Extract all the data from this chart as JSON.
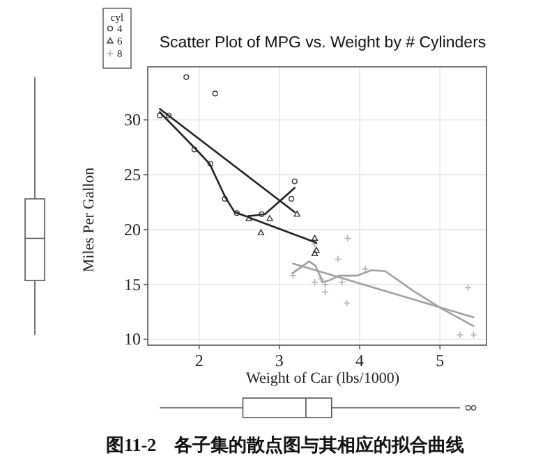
{
  "chart_data": {
    "type": "scatter",
    "title": "Scatter Plot of MPG vs. Weight by # Cylinders",
    "xlabel": "Weight of Car (lbs/1000)",
    "ylabel": "Miles Per Gallon",
    "legend_title": "cyl",
    "legend": "top left",
    "grid": true,
    "xlim": [
      1.36,
      5.58
    ],
    "ylim": [
      9.46,
      34.84
    ],
    "xticks": [
      2,
      3,
      4,
      5
    ],
    "yticks": [
      10,
      15,
      20,
      25,
      30
    ],
    "series": [
      {
        "name": "4",
        "type": "scatter",
        "marker": "circle",
        "color": "#333333",
        "x": [
          2.32,
          3.19,
          3.15,
          2.2,
          1.62,
          1.84,
          2.47,
          1.94,
          2.14,
          1.51,
          2.78
        ],
        "values": [
          22.8,
          24.4,
          22.8,
          32.4,
          30.4,
          33.9,
          21.5,
          27.3,
          26.0,
          30.4,
          21.4
        ]
      },
      {
        "name": "6",
        "type": "scatter",
        "marker": "triangle",
        "color": "#333333",
        "x": [
          2.62,
          2.88,
          3.22,
          3.46,
          3.44,
          3.44,
          2.77
        ],
        "values": [
          21.0,
          21.0,
          21.4,
          18.1,
          19.2,
          17.8,
          19.7
        ]
      },
      {
        "name": "8",
        "type": "scatter",
        "marker": "cross",
        "color": "#b0b0b0",
        "x": [
          3.44,
          3.57,
          4.07,
          3.73,
          3.78,
          5.25,
          5.42,
          5.35,
          3.52,
          3.44,
          3.84,
          3.85,
          3.17,
          3.57
        ],
        "values": [
          18.7,
          14.3,
          16.4,
          17.3,
          15.2,
          10.4,
          10.4,
          14.7,
          15.5,
          15.2,
          13.3,
          19.2,
          15.8,
          15.0
        ]
      },
      {
        "type": "line",
        "color": "#222222",
        "x": [
          1.51,
          3.19
        ],
        "values": [
          31.0,
          21.6
        ]
      },
      {
        "type": "line",
        "color": "#222222",
        "x": [
          1.51,
          1.95,
          2.13,
          2.33,
          2.44,
          2.59,
          2.82,
          2.99,
          3.19
        ],
        "values": [
          30.7,
          27.4,
          26.0,
          22.9,
          21.6,
          21.2,
          21.4,
          22.5,
          23.8
        ]
      },
      {
        "type": "line",
        "color": "#222222",
        "x": [
          2.62,
          3.46
        ],
        "values": [
          21.1,
          18.8
        ]
      },
      {
        "type": "line",
        "color": "#a0a0a0",
        "x": [
          3.17,
          5.42
        ],
        "values": [
          16.9,
          12.0
        ]
      },
      {
        "type": "line",
        "color": "#a0a0a0",
        "x": [
          3.16,
          3.37,
          3.45,
          3.54,
          3.63,
          3.74,
          3.97,
          4.15,
          4.32,
          4.67,
          5.02,
          5.42
        ],
        "values": [
          16.0,
          17.1,
          16.7,
          15.2,
          15.4,
          15.8,
          15.8,
          16.3,
          16.2,
          14.4,
          12.8,
          11.2
        ]
      }
    ],
    "annotations": [
      "图11-2　各子集的散点图与其相应的拟合曲线"
    ]
  }
}
